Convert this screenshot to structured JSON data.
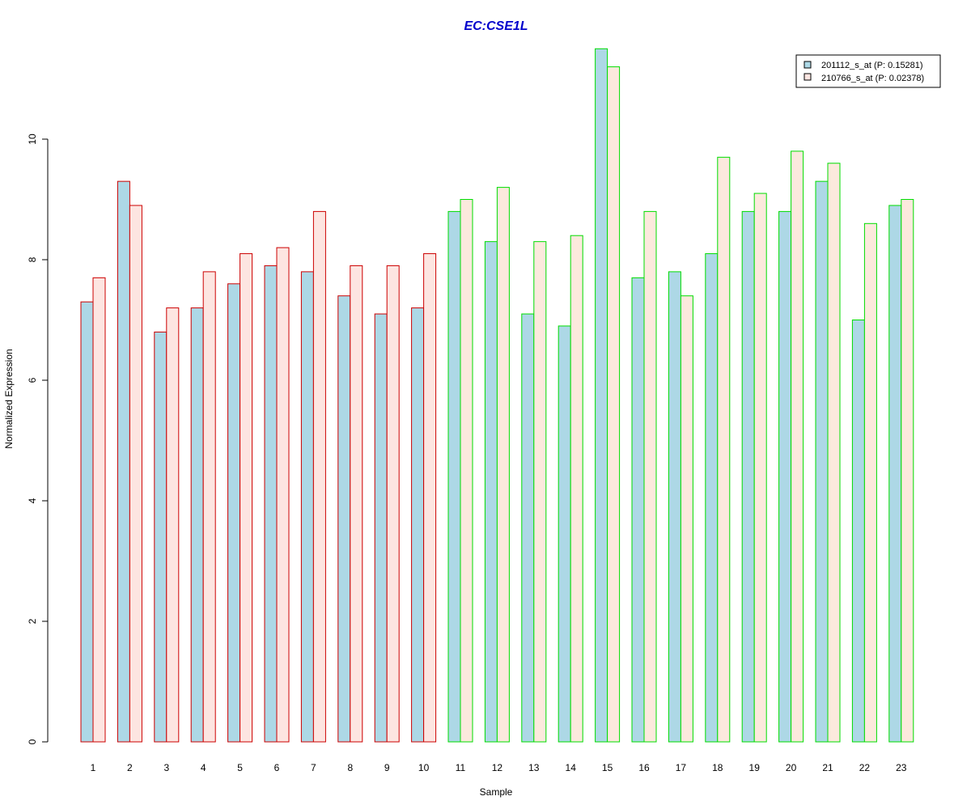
{
  "chart_data": {
    "type": "bar",
    "title": "EC:CSE1L",
    "xlabel": "Sample",
    "ylabel": "Normalized Expression",
    "ylim": [
      0,
      11.6
    ],
    "yticks": [
      0,
      2,
      4,
      6,
      8,
      10
    ],
    "categories": [
      "1",
      "2",
      "3",
      "4",
      "5",
      "6",
      "7",
      "8",
      "9",
      "10",
      "11",
      "12",
      "13",
      "14",
      "15",
      "16",
      "17",
      "18",
      "19",
      "20",
      "21",
      "22",
      "23"
    ],
    "series": [
      {
        "name": "201112_s_at (P: 0.15281)",
        "fill": "#add8e6",
        "values": [
          7.3,
          9.3,
          6.8,
          7.2,
          7.6,
          7.9,
          7.8,
          7.4,
          7.1,
          7.2,
          8.8,
          8.3,
          7.1,
          6.9,
          11.5,
          7.7,
          7.8,
          8.1,
          8.8,
          8.8,
          9.3,
          7.0,
          8.9
        ]
      },
      {
        "name": "210766_s_at (P: 0.02378)",
        "fill_group1": "#fde5e1",
        "fill_group2": "#fce9dd",
        "values": [
          7.7,
          8.9,
          7.2,
          7.8,
          8.1,
          8.2,
          8.8,
          7.9,
          7.9,
          8.1,
          9.0,
          9.2,
          8.3,
          8.4,
          11.2,
          8.8,
          7.4,
          9.7,
          9.1,
          9.8,
          9.6,
          8.6,
          9.0
        ]
      }
    ],
    "group_outline_colors": [
      "#cc0000",
      "#00dd00"
    ],
    "group_of_category": [
      0,
      0,
      0,
      0,
      0,
      0,
      0,
      0,
      0,
      0,
      1,
      1,
      1,
      1,
      1,
      1,
      1,
      1,
      1,
      1,
      1,
      1,
      1
    ],
    "title_color": "#0000cc",
    "legend_placement": "top-right",
    "grid": false
  }
}
